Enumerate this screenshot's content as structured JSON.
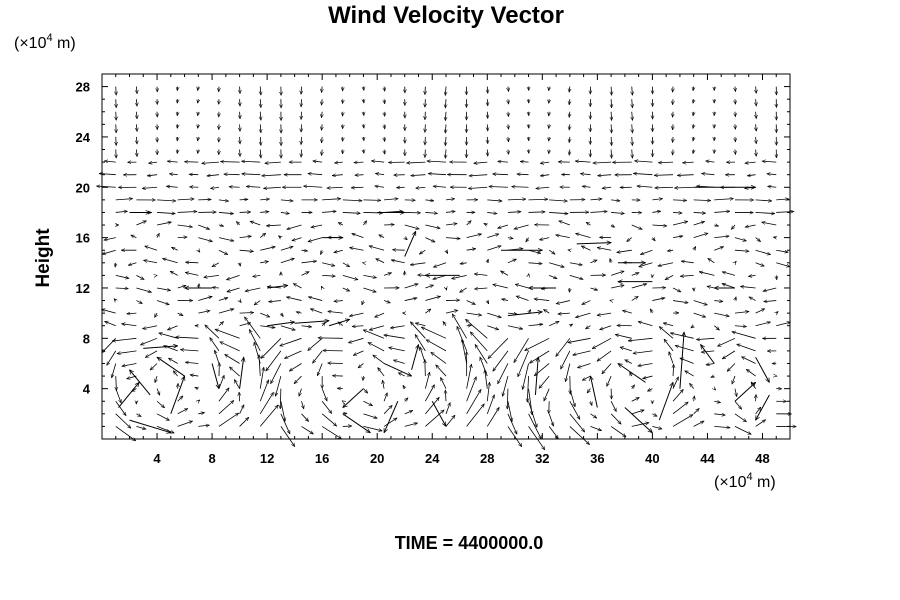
{
  "chart_data": {
    "type": "vector",
    "title": "Wind Velocity Vector",
    "ylabel": "Height",
    "xlabel": "",
    "x_unit": {
      "prefix": "(×10",
      "exponent": "4",
      "suffix": " m)"
    },
    "y_unit": {
      "prefix": "(×10",
      "exponent": "4",
      "suffix": " m)"
    },
    "xlim": [
      0,
      50
    ],
    "ylim": [
      0,
      29
    ],
    "xticks": [
      "4",
      "8",
      "12",
      "16",
      "20",
      "24",
      "28",
      "32",
      "36",
      "40",
      "44",
      "48"
    ],
    "yticks": [
      "4",
      "8",
      "12",
      "16",
      "20",
      "24",
      "28"
    ],
    "grid": false,
    "arrow_color": "#000000",
    "vectors": [
      {
        "x": 1.2,
        "y": 2.5,
        "u": 1.5,
        "v": 2.0
      },
      {
        "x": 2.0,
        "y": 1.5,
        "u": 3.0,
        "v": -1.0
      },
      {
        "x": 3.5,
        "y": 3.5,
        "u": -1.5,
        "v": 2.0
      },
      {
        "x": 5.0,
        "y": 2.0,
        "u": 1.0,
        "v": 3.0
      },
      {
        "x": 6.0,
        "y": 5.0,
        "u": -2.0,
        "v": 1.5
      },
      {
        "x": 3.0,
        "y": 7.2,
        "u": 2.5,
        "v": 0.2
      },
      {
        "x": 8.0,
        "y": 6.0,
        "u": 0.5,
        "v": -2.0
      },
      {
        "x": 10.0,
        "y": 4.0,
        "u": 0.3,
        "v": 2.5
      },
      {
        "x": 12.0,
        "y": 9.0,
        "u": 2.0,
        "v": 0.3
      },
      {
        "x": 14.0,
        "y": 9.2,
        "u": 2.5,
        "v": 0.2
      },
      {
        "x": 16.5,
        "y": 9.0,
        "u": 1.5,
        "v": 0.5
      },
      {
        "x": 17.5,
        "y": 2.0,
        "u": 2.0,
        "v": -1.5
      },
      {
        "x": 19.0,
        "y": 4.0,
        "u": -1.5,
        "v": -1.5
      },
      {
        "x": 20.5,
        "y": 6.0,
        "u": 2.0,
        "v": -1.0
      },
      {
        "x": 21.5,
        "y": 3.0,
        "u": -1.0,
        "v": -2.5
      },
      {
        "x": 22.5,
        "y": 5.5,
        "u": 0.5,
        "v": 2.0
      },
      {
        "x": 24.0,
        "y": 3.0,
        "u": 1.0,
        "v": -2.0
      },
      {
        "x": 22.0,
        "y": 14.5,
        "u": 0.8,
        "v": 2.0
      },
      {
        "x": 29.0,
        "y": 15.0,
        "u": 3.0,
        "v": 0.0
      },
      {
        "x": 34.5,
        "y": 15.5,
        "u": 2.5,
        "v": 0.1
      },
      {
        "x": 37.5,
        "y": 14.0,
        "u": 2.0,
        "v": 0.0
      },
      {
        "x": 29.5,
        "y": 9.8,
        "u": 2.5,
        "v": 0.3
      },
      {
        "x": 31.5,
        "y": 3.5,
        "u": 0.2,
        "v": 3.0
      },
      {
        "x": 36.0,
        "y": 2.5,
        "u": -0.5,
        "v": 2.5
      },
      {
        "x": 38.0,
        "y": 2.5,
        "u": 2.0,
        "v": -2.0
      },
      {
        "x": 39.5,
        "y": 4.5,
        "u": -2.0,
        "v": 1.5
      },
      {
        "x": 40.5,
        "y": 1.5,
        "u": 1.0,
        "v": 3.0
      },
      {
        "x": 42.0,
        "y": 4.0,
        "u": 0.3,
        "v": 4.5
      },
      {
        "x": 44.5,
        "y": 6.0,
        "u": -1.0,
        "v": 1.5
      },
      {
        "x": 46.0,
        "y": 3.0,
        "u": 1.5,
        "v": 1.5
      },
      {
        "x": 47.5,
        "y": 6.5,
        "u": 1.0,
        "v": -2.0
      },
      {
        "x": 48.5,
        "y": 3.5,
        "u": -1.0,
        "v": -2.0
      },
      {
        "x": 43.0,
        "y": 20.0,
        "u": 4.5,
        "v": 0.0
      },
      {
        "x": 2.0,
        "y": 18.0,
        "u": 1.5,
        "v": 0.0
      },
      {
        "x": 20.0,
        "y": 18.0,
        "u": 2.0,
        "v": 0.0
      },
      {
        "x": 8.0,
        "y": 12.0,
        "u": -2.0,
        "v": 0.0
      },
      {
        "x": 12.0,
        "y": 12.0,
        "u": 1.5,
        "v": 0.2
      },
      {
        "x": 16.0,
        "y": 16.0,
        "u": 1.5,
        "v": 0.0
      },
      {
        "x": 26.0,
        "y": 13.0,
        "u": -2.5,
        "v": 0.0
      },
      {
        "x": 33.0,
        "y": 12.0,
        "u": -2.0,
        "v": 0.0
      },
      {
        "x": 40.0,
        "y": 12.5,
        "u": -2.5,
        "v": 0.0
      },
      {
        "x": 46.0,
        "y": 12.0,
        "u": -1.5,
        "v": 0.0
      }
    ]
  },
  "footer": {
    "time_label": "TIME = 4400000.0"
  }
}
